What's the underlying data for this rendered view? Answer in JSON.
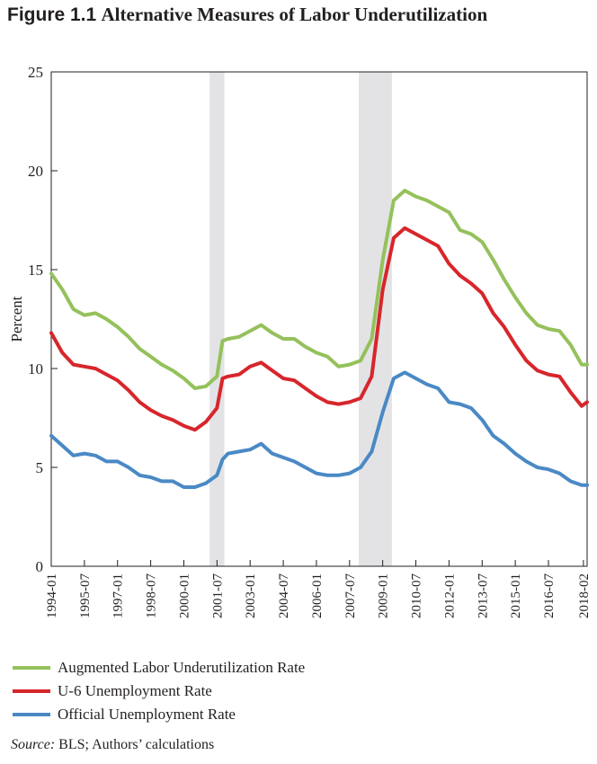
{
  "title": {
    "figure_number": "Figure 1.1",
    "text": "Alternative Measures of Labor Underutilization"
  },
  "source": {
    "label": "Source:",
    "text": " BLS; Authors’ calculations"
  },
  "chart_data": {
    "type": "line",
    "title": "Alternative Measures of Labor Underutilization",
    "ylabel": "Percent",
    "ylim": [
      0,
      25
    ],
    "yticks": [
      0,
      5,
      10,
      15,
      20,
      25
    ],
    "xlim": [
      "1994-01",
      "2018-04"
    ],
    "x_tick_labels": [
      "1994-01",
      "1995-07",
      "1997-01",
      "1998-07",
      "2000-01",
      "2001-07",
      "2003-01",
      "2004-07",
      "2006-01",
      "2007-07",
      "2009-01",
      "2010-07",
      "2012-01",
      "2013-07",
      "2015-01",
      "2016-07",
      "2018-02"
    ],
    "recessions": [
      [
        "2001-03",
        "2001-11"
      ],
      [
        "2007-12",
        "2009-06"
      ]
    ],
    "grid": false,
    "legend_position": "bottom",
    "series": [
      {
        "name": "Augmented Labor Underutilization Rate",
        "color": "#94c15b",
        "x": [
          "1994-01",
          "1994-07",
          "1995-01",
          "1995-07",
          "1996-01",
          "1996-07",
          "1997-01",
          "1997-07",
          "1998-01",
          "1998-07",
          "1999-01",
          "1999-07",
          "2000-01",
          "2000-07",
          "2001-01",
          "2001-07",
          "2001-10",
          "2002-01",
          "2002-07",
          "2003-01",
          "2003-07",
          "2004-01",
          "2004-07",
          "2005-01",
          "2005-07",
          "2006-01",
          "2006-07",
          "2007-01",
          "2007-07",
          "2008-01",
          "2008-07",
          "2009-01",
          "2009-07",
          "2010-01",
          "2010-07",
          "2011-01",
          "2011-07",
          "2012-01",
          "2012-07",
          "2013-01",
          "2013-07",
          "2014-01",
          "2014-07",
          "2015-01",
          "2015-07",
          "2016-01",
          "2016-07",
          "2017-01",
          "2017-07",
          "2018-01",
          "2018-04"
        ],
        "values": [
          14.8,
          14.0,
          13.0,
          12.7,
          12.8,
          12.5,
          12.1,
          11.6,
          11.0,
          10.6,
          10.2,
          9.9,
          9.5,
          9.0,
          9.1,
          9.6,
          11.4,
          11.5,
          11.6,
          11.9,
          12.2,
          11.8,
          11.5,
          11.5,
          11.1,
          10.8,
          10.6,
          10.1,
          10.2,
          10.4,
          11.5,
          15.5,
          18.5,
          19.0,
          18.7,
          18.5,
          18.2,
          17.9,
          17.0,
          16.8,
          16.4,
          15.5,
          14.5,
          13.6,
          12.8,
          12.2,
          12.0,
          11.9,
          11.2,
          10.2,
          10.2
        ]
      },
      {
        "name": "U-6 Unemployment Rate",
        "color": "#d7262b",
        "x": [
          "1994-01",
          "1994-07",
          "1995-01",
          "1995-07",
          "1996-01",
          "1996-07",
          "1997-01",
          "1997-07",
          "1998-01",
          "1998-07",
          "1999-01",
          "1999-07",
          "2000-01",
          "2000-07",
          "2001-01",
          "2001-07",
          "2001-10",
          "2002-01",
          "2002-07",
          "2003-01",
          "2003-07",
          "2004-01",
          "2004-07",
          "2005-01",
          "2005-07",
          "2006-01",
          "2006-07",
          "2007-01",
          "2007-07",
          "2008-01",
          "2008-07",
          "2009-01",
          "2009-07",
          "2010-01",
          "2010-07",
          "2011-01",
          "2011-07",
          "2012-01",
          "2012-07",
          "2013-01",
          "2013-07",
          "2014-01",
          "2014-07",
          "2015-01",
          "2015-07",
          "2016-01",
          "2016-07",
          "2017-01",
          "2017-07",
          "2018-01",
          "2018-04"
        ],
        "values": [
          11.8,
          10.8,
          10.2,
          10.1,
          10.0,
          9.7,
          9.4,
          8.9,
          8.3,
          7.9,
          7.6,
          7.4,
          7.1,
          6.9,
          7.3,
          8.0,
          9.5,
          9.6,
          9.7,
          10.1,
          10.3,
          9.9,
          9.5,
          9.4,
          9.0,
          8.6,
          8.3,
          8.2,
          8.3,
          8.5,
          9.6,
          14.0,
          16.6,
          17.1,
          16.8,
          16.5,
          16.2,
          15.3,
          14.7,
          14.3,
          13.8,
          12.8,
          12.1,
          11.2,
          10.4,
          9.9,
          9.7,
          9.6,
          8.8,
          8.1,
          8.3
        ]
      },
      {
        "name": "Official Unemployment Rate",
        "color": "#4a89c5",
        "x": [
          "1994-01",
          "1994-07",
          "1995-01",
          "1995-07",
          "1996-01",
          "1996-07",
          "1997-01",
          "1997-07",
          "1998-01",
          "1998-07",
          "1999-01",
          "1999-07",
          "2000-01",
          "2000-07",
          "2001-01",
          "2001-07",
          "2001-10",
          "2002-01",
          "2002-07",
          "2003-01",
          "2003-07",
          "2004-01",
          "2004-07",
          "2005-01",
          "2005-07",
          "2006-01",
          "2006-07",
          "2007-01",
          "2007-07",
          "2008-01",
          "2008-07",
          "2009-01",
          "2009-07",
          "2010-01",
          "2010-07",
          "2011-01",
          "2011-07",
          "2012-01",
          "2012-07",
          "2013-01",
          "2013-07",
          "2014-01",
          "2014-07",
          "2015-01",
          "2015-07",
          "2016-01",
          "2016-07",
          "2017-01",
          "2017-07",
          "2018-01",
          "2018-04"
        ],
        "values": [
          6.6,
          6.1,
          5.6,
          5.7,
          5.6,
          5.3,
          5.3,
          5.0,
          4.6,
          4.5,
          4.3,
          4.3,
          4.0,
          4.0,
          4.2,
          4.6,
          5.4,
          5.7,
          5.8,
          5.9,
          6.2,
          5.7,
          5.5,
          5.3,
          5.0,
          4.7,
          4.6,
          4.6,
          4.7,
          5.0,
          5.8,
          7.8,
          9.5,
          9.8,
          9.5,
          9.2,
          9.0,
          8.3,
          8.2,
          8.0,
          7.4,
          6.6,
          6.2,
          5.7,
          5.3,
          5.0,
          4.9,
          4.7,
          4.3,
          4.1,
          4.1
        ]
      }
    ]
  }
}
